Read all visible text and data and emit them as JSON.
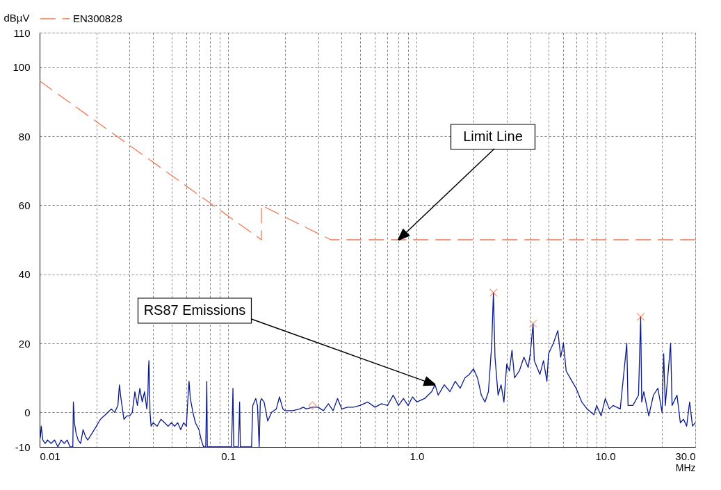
{
  "chart_data": {
    "type": "line",
    "xlabel": "MHz",
    "ylabel": "dBµV",
    "log": "x",
    "grid": true,
    "legend": "top",
    "xlim": [
      0.01,
      30
    ],
    "xticks": [
      {
        "value": 0.01,
        "label": "0.01"
      },
      {
        "value": 0.02,
        "label": null
      },
      {
        "value": 0.03,
        "label": null
      },
      {
        "value": 0.04,
        "label": null
      },
      {
        "value": 0.05,
        "label": null
      },
      {
        "value": 0.06,
        "label": null
      },
      {
        "value": 0.07,
        "label": null
      },
      {
        "value": 0.08,
        "label": null
      },
      {
        "value": 0.09,
        "label": null
      },
      {
        "value": 0.1,
        "label": "0.1"
      },
      {
        "value": 0.2,
        "label": null
      },
      {
        "value": 0.3,
        "label": null
      },
      {
        "value": 0.4,
        "label": null
      },
      {
        "value": 0.5,
        "label": null
      },
      {
        "value": 0.6,
        "label": null
      },
      {
        "value": 0.7,
        "label": null
      },
      {
        "value": 0.8,
        "label": null
      },
      {
        "value": 0.9,
        "label": null
      },
      {
        "value": 1,
        "label": "1.0"
      },
      {
        "value": 2,
        "label": null
      },
      {
        "value": 3,
        "label": null
      },
      {
        "value": 4,
        "label": null
      },
      {
        "value": 5,
        "label": null
      },
      {
        "value": 6,
        "label": null
      },
      {
        "value": 7,
        "label": null
      },
      {
        "value": 8,
        "label": null
      },
      {
        "value": 9,
        "label": null
      },
      {
        "value": 10,
        "label": "10.0"
      },
      {
        "value": 20,
        "label": null
      },
      {
        "value": 30,
        "label": "30.0"
      }
    ],
    "ylim": [
      -10,
      110
    ],
    "yticks": [
      -10,
      0,
      20,
      40,
      60,
      80,
      100,
      110
    ],
    "annotations": [
      {
        "text": "Limit Line",
        "x": 0.8,
        "y": 50
      },
      {
        "text": "RS87 Emissions",
        "x": 1.25,
        "y": 8
      }
    ],
    "series": [
      {
        "name": "EN300828",
        "type": "line",
        "line_style": "dashed",
        "color": "#f07850",
        "x": [
          0.01,
          0.15,
          0.15,
          0.35,
          30
        ],
        "values": [
          96,
          50,
          60,
          50,
          50
        ]
      },
      {
        "line_style": "solid",
        "color": "#0a1a8c",
        "x": [
          0.01,
          0.0101,
          0.0102,
          0.0104,
          0.0107,
          0.011,
          0.0115,
          0.012,
          0.0125,
          0.013,
          0.0135,
          0.014,
          0.0145,
          0.015,
          0.0151,
          0.0153,
          0.0156,
          0.016,
          0.0165,
          0.017,
          0.0175,
          0.018,
          0.019,
          0.02,
          0.021,
          0.022,
          0.023,
          0.024,
          0.025,
          0.026,
          0.0265,
          0.027,
          0.028,
          0.029,
          0.03,
          0.031,
          0.032,
          0.033,
          0.034,
          0.035,
          0.036,
          0.037,
          0.0375,
          0.0378,
          0.038,
          0.0385,
          0.039,
          0.04,
          0.042,
          0.044,
          0.046,
          0.048,
          0.05,
          0.052,
          0.054,
          0.056,
          0.058,
          0.06,
          0.061,
          0.062,
          0.063,
          0.065,
          0.067,
          0.07,
          0.072,
          0.074,
          0.076,
          0.0765,
          0.077,
          0.0775,
          0.09,
          0.104,
          0.105,
          0.106,
          0.107,
          0.113,
          0.114,
          0.115,
          0.116,
          0.133,
          0.135,
          0.14,
          0.143,
          0.146,
          0.148,
          0.15,
          0.155,
          0.162,
          0.17,
          0.18,
          0.187,
          0.195,
          0.2,
          0.22,
          0.24,
          0.25,
          0.26,
          0.28,
          0.3,
          0.32,
          0.34,
          0.36,
          0.38,
          0.4,
          0.43,
          0.46,
          0.5,
          0.55,
          0.6,
          0.65,
          0.7,
          0.75,
          0.8,
          0.85,
          0.9,
          0.95,
          1.0,
          1.1,
          1.2,
          1.25,
          1.3,
          1.4,
          1.5,
          1.6,
          1.7,
          1.8,
          1.9,
          2.0,
          2.1,
          2.2,
          2.3,
          2.4,
          2.5,
          2.55,
          2.6,
          2.7,
          2.8,
          2.9,
          3.0,
          3.1,
          3.2,
          3.3,
          3.5,
          3.7,
          3.9,
          4.0,
          4.14,
          4.2,
          4.5,
          4.7,
          4.9,
          5.0,
          5.3,
          5.6,
          5.8,
          6.0,
          6.2,
          6.5,
          7.0,
          7.5,
          8.0,
          8.7,
          9.0,
          9.5,
          10.0,
          10.5,
          11,
          12,
          13,
          13.2,
          14,
          15,
          15.4,
          15.6,
          16,
          17,
          18,
          19,
          20,
          20.4,
          20.8,
          22.2,
          22.6,
          24,
          25,
          26,
          27,
          28,
          29,
          30
        ],
        "values": [
          -8,
          -7,
          -4,
          -8,
          -9,
          -8,
          -9,
          -8,
          -10,
          -8,
          -9,
          -8,
          -10,
          -10,
          3,
          -3,
          -6,
          -8,
          -9,
          -5,
          -7,
          -8,
          -6,
          -4,
          -2,
          -1,
          0,
          1,
          0,
          2,
          8,
          4,
          -2,
          -1,
          -1,
          0,
          6,
          2,
          7,
          3,
          6,
          1,
          5,
          13,
          15,
          0,
          -4,
          -3,
          -4,
          -2,
          -3,
          -4,
          -3,
          -4,
          -3,
          -5,
          -3,
          -4,
          3,
          9,
          4,
          0,
          -3,
          -5,
          -8,
          -10,
          -10,
          -1,
          9,
          -10,
          -10,
          -10,
          -3,
          7,
          -10,
          -10,
          -5,
          3,
          -10,
          -10,
          2,
          4,
          2,
          -10,
          3,
          4,
          3,
          -2.5,
          0,
          1,
          4.5,
          1,
          0.5,
          0.5,
          1,
          1.5,
          1,
          1.5,
          1.5,
          0.5,
          2.5,
          0.5,
          4,
          1,
          1.5,
          1.5,
          2,
          3,
          1.5,
          2.5,
          2,
          5,
          2,
          4,
          2,
          4.5,
          3,
          4,
          6,
          8,
          5,
          8,
          6,
          9,
          7,
          10,
          11,
          12.6,
          10,
          5,
          3,
          6,
          20,
          34.7,
          16,
          5,
          8,
          3,
          14,
          12,
          18,
          10,
          12,
          16,
          13,
          17,
          25.7,
          15,
          11,
          15,
          9,
          17,
          20,
          23.7,
          16,
          20,
          12,
          10,
          7,
          3,
          1,
          -0.7,
          2,
          -1,
          4,
          1,
          2,
          1,
          20,
          2,
          2,
          5,
          27.7,
          3,
          6,
          -1,
          5,
          7,
          0,
          17,
          2,
          20,
          2,
          5,
          -3,
          -2,
          -4,
          3,
          -4,
          -3
        ]
      },
      {
        "type": "scatter",
        "marker": "cross",
        "color": "#f07850",
        "x": [
          2.55,
          4.14,
          15.4
        ],
        "values": [
          34.7,
          25.7,
          27.7
        ]
      },
      {
        "type": "scatter",
        "marker": "diamond",
        "color": "#f07850",
        "x": [
          0.28
        ],
        "values": [
          2
        ]
      }
    ]
  }
}
